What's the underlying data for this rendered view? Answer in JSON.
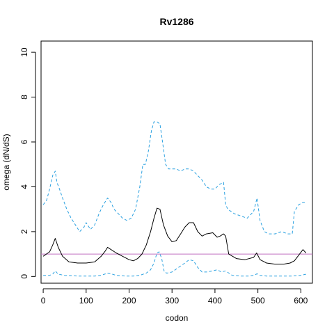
{
  "chart_data": {
    "type": "line",
    "title": "Rv1286",
    "xlabel": "codon",
    "ylabel": "omega (dN/dS)",
    "xlim": [
      -5,
      627
    ],
    "ylim": [
      -0.3,
      10.5
    ],
    "xticks": [
      0,
      100,
      200,
      300,
      400,
      500,
      600
    ],
    "yticks": [
      0,
      2,
      4,
      6,
      8,
      10
    ],
    "grid": false,
    "legend": "none",
    "reference_line": {
      "y": 1,
      "color": "#c070c0"
    },
    "series": [
      {
        "style": "solid",
        "color": "#000000",
        "x": [
          0,
          15,
          22,
          28,
          35,
          45,
          60,
          80,
          100,
          120,
          135,
          145,
          150,
          158,
          170,
          185,
          200,
          210,
          220,
          230,
          240,
          250,
          258,
          265,
          272,
          280,
          290,
          300,
          310,
          320,
          330,
          340,
          350,
          360,
          370,
          380,
          395,
          405,
          412,
          420,
          425,
          432,
          450,
          470,
          490,
          497,
          505,
          520,
          540,
          560,
          575,
          585,
          595,
          605,
          612
        ],
        "y": [
          0.9,
          1.1,
          1.4,
          1.7,
          1.3,
          0.9,
          0.65,
          0.6,
          0.6,
          0.65,
          0.9,
          1.15,
          1.3,
          1.2,
          1.05,
          0.9,
          0.75,
          0.7,
          0.8,
          1.0,
          1.4,
          2.0,
          2.6,
          3.05,
          3.0,
          2.3,
          1.8,
          1.55,
          1.6,
          1.9,
          2.2,
          2.4,
          2.4,
          2.0,
          1.8,
          1.9,
          1.95,
          1.75,
          1.8,
          1.9,
          1.8,
          1.0,
          0.8,
          0.75,
          0.85,
          1.05,
          0.75,
          0.6,
          0.55,
          0.55,
          0.6,
          0.7,
          0.95,
          1.2,
          1.05
        ]
      },
      {
        "style": "dashed",
        "color": "#29a0e0",
        "x": [
          0,
          8,
          15,
          22,
          28,
          32,
          38,
          45,
          55,
          65,
          75,
          85,
          95,
          100,
          110,
          120,
          130,
          140,
          150,
          158,
          165,
          175,
          185,
          195,
          205,
          215,
          225,
          232,
          238,
          245,
          252,
          258,
          265,
          272,
          278,
          285,
          292,
          300,
          310,
          320,
          330,
          340,
          350,
          360,
          370,
          380,
          390,
          400,
          410,
          420,
          425,
          430,
          445,
          460,
          475,
          490,
          498,
          505,
          515,
          525,
          540,
          555,
          570,
          580,
          585,
          595,
          605,
          612
        ],
        "y": [
          3.2,
          3.4,
          3.9,
          4.5,
          4.7,
          4.2,
          3.9,
          3.5,
          3.0,
          2.6,
          2.3,
          2.0,
          2.2,
          2.4,
          2.1,
          2.3,
          2.8,
          3.2,
          3.5,
          3.3,
          3.0,
          2.8,
          2.6,
          2.5,
          2.6,
          3.0,
          4.0,
          5.0,
          5.0,
          5.6,
          6.5,
          6.9,
          6.9,
          6.8,
          6.0,
          5.0,
          4.8,
          4.8,
          4.8,
          4.7,
          4.8,
          4.8,
          4.7,
          4.5,
          4.3,
          4.0,
          3.9,
          3.9,
          4.1,
          4.2,
          3.2,
          3.0,
          2.8,
          2.7,
          2.6,
          2.9,
          3.5,
          2.5,
          2.0,
          1.9,
          1.9,
          2.0,
          1.9,
          1.9,
          2.9,
          3.2,
          3.3,
          3.3
        ]
      },
      {
        "style": "dashed",
        "color": "#29a0e0",
        "x": [
          0,
          15,
          22,
          28,
          35,
          50,
          80,
          100,
          120,
          135,
          150,
          158,
          170,
          190,
          210,
          225,
          240,
          250,
          258,
          265,
          270,
          276,
          282,
          288,
          300,
          315,
          330,
          340,
          350,
          360,
          370,
          380,
          395,
          405,
          415,
          425,
          440,
          460,
          480,
          490,
          498,
          505,
          520,
          540,
          560,
          580,
          600,
          612
        ],
        "y": [
          0.05,
          0.05,
          0.1,
          0.25,
          0.1,
          0.05,
          0.02,
          0.02,
          0.02,
          0.05,
          0.15,
          0.12,
          0.05,
          0.02,
          0.02,
          0.05,
          0.15,
          0.3,
          0.6,
          1.05,
          1.1,
          0.8,
          0.2,
          0.15,
          0.2,
          0.4,
          0.6,
          0.75,
          0.7,
          0.4,
          0.2,
          0.2,
          0.25,
          0.3,
          0.2,
          0.25,
          0.05,
          0.02,
          0.02,
          0.05,
          0.12,
          0.05,
          0.02,
          0.02,
          0.02,
          0.02,
          0.05,
          0.1
        ]
      }
    ]
  }
}
